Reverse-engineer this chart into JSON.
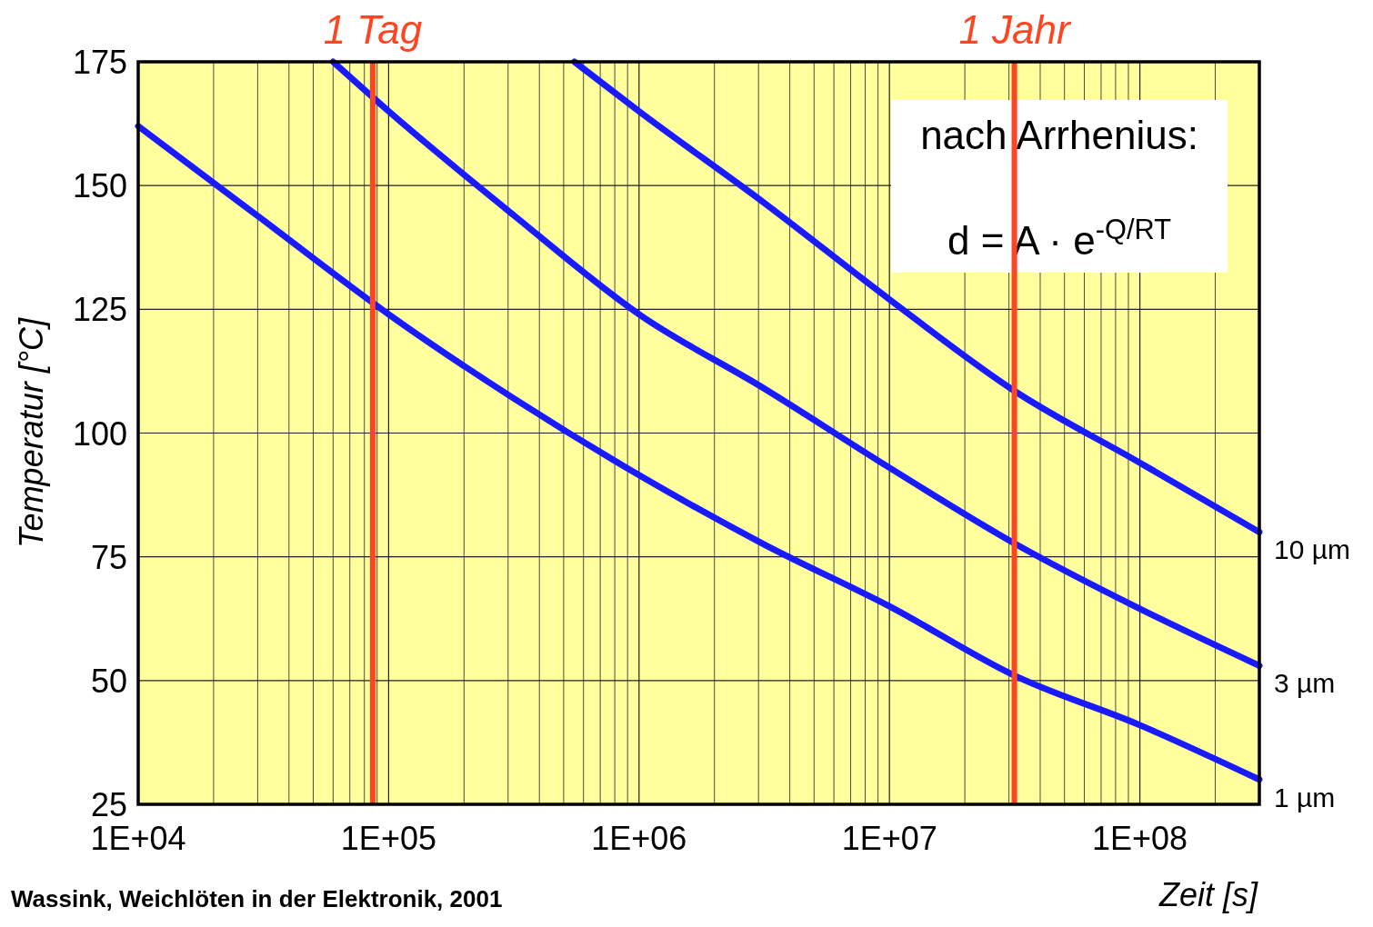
{
  "chart_data": {
    "type": "line",
    "xlabel": "Zeit [s]",
    "ylabel": "Temperatur [°C]",
    "log": "x",
    "grid": true,
    "marker": "none",
    "line_style": "solid",
    "xlim": [
      10000,
      300000000
    ],
    "ylim": [
      25,
      175
    ],
    "xticks": [
      {
        "value": 10000,
        "label": "1E+04"
      },
      {
        "value": 20000,
        "label": null
      },
      {
        "value": 30000,
        "label": null
      },
      {
        "value": 40000,
        "label": null
      },
      {
        "value": 50000,
        "label": null
      },
      {
        "value": 60000,
        "label": null
      },
      {
        "value": 70000,
        "label": null
      },
      {
        "value": 80000,
        "label": null
      },
      {
        "value": 90000,
        "label": null
      },
      {
        "value": 100000,
        "label": "1E+05"
      },
      {
        "value": 200000,
        "label": null
      },
      {
        "value": 300000,
        "label": null
      },
      {
        "value": 400000,
        "label": null
      },
      {
        "value": 500000,
        "label": null
      },
      {
        "value": 600000,
        "label": null
      },
      {
        "value": 700000,
        "label": null
      },
      {
        "value": 800000,
        "label": null
      },
      {
        "value": 900000,
        "label": null
      },
      {
        "value": 1000000,
        "label": "1E+06"
      },
      {
        "value": 2000000,
        "label": null
      },
      {
        "value": 3000000,
        "label": null
      },
      {
        "value": 4000000,
        "label": null
      },
      {
        "value": 5000000,
        "label": null
      },
      {
        "value": 6000000,
        "label": null
      },
      {
        "value": 7000000,
        "label": null
      },
      {
        "value": 8000000,
        "label": null
      },
      {
        "value": 9000000,
        "label": null
      },
      {
        "value": 10000000,
        "label": "1E+07"
      },
      {
        "value": 20000000,
        "label": null
      },
      {
        "value": 30000000,
        "label": null
      },
      {
        "value": 40000000,
        "label": null
      },
      {
        "value": 50000000,
        "label": null
      },
      {
        "value": 60000000,
        "label": null
      },
      {
        "value": 70000000,
        "label": null
      },
      {
        "value": 80000000,
        "label": null
      },
      {
        "value": 90000000,
        "label": null
      },
      {
        "value": 100000000,
        "label": "1E+08"
      },
      {
        "value": 200000000,
        "label": null
      },
      {
        "value": 300000000,
        "label": null
      }
    ],
    "yticks": [
      25,
      50,
      75,
      100,
      125,
      150,
      175
    ],
    "series": [
      {
        "name": "10 µm",
        "color": "#1a1aff",
        "x": [
          552000,
          1000000,
          3160000,
          10000000,
          31600000,
          100000000,
          300000000
        ],
        "values": [
          175,
          165,
          146.5,
          127,
          108.5,
          94,
          80
        ]
      },
      {
        "name": "3 µm",
        "color": "#1a1aff",
        "x": [
          60000,
          100000,
          316000,
          1000000,
          3160000,
          10000000,
          31600000,
          100000000,
          300000000
        ],
        "values": [
          175,
          165,
          144,
          124,
          109,
          93,
          77.7,
          64.5,
          53
        ]
      },
      {
        "name": "1 µm",
        "color": "#1a1aff",
        "x": [
          10000,
          31600,
          100000,
          316000,
          1000000,
          3160000,
          10000000,
          31600000,
          100000000,
          300000000
        ],
        "values": [
          162,
          143,
          124,
          107,
          91.5,
          77.5,
          65,
          51,
          41,
          30
        ]
      }
    ],
    "ref_lines": [
      {
        "axis": "x",
        "value": 86400,
        "label": "1 Tag",
        "color": "#ff4422"
      },
      {
        "axis": "x",
        "value": 31536000,
        "label": "1 Jahr",
        "color": "#ff4422"
      }
    ],
    "annotations": [
      "nach Arrhenius:",
      "d = A · e$^{-Q/RT}$",
      "Wassink, Weichlöten in der Elektronik, 2001"
    ]
  }
}
